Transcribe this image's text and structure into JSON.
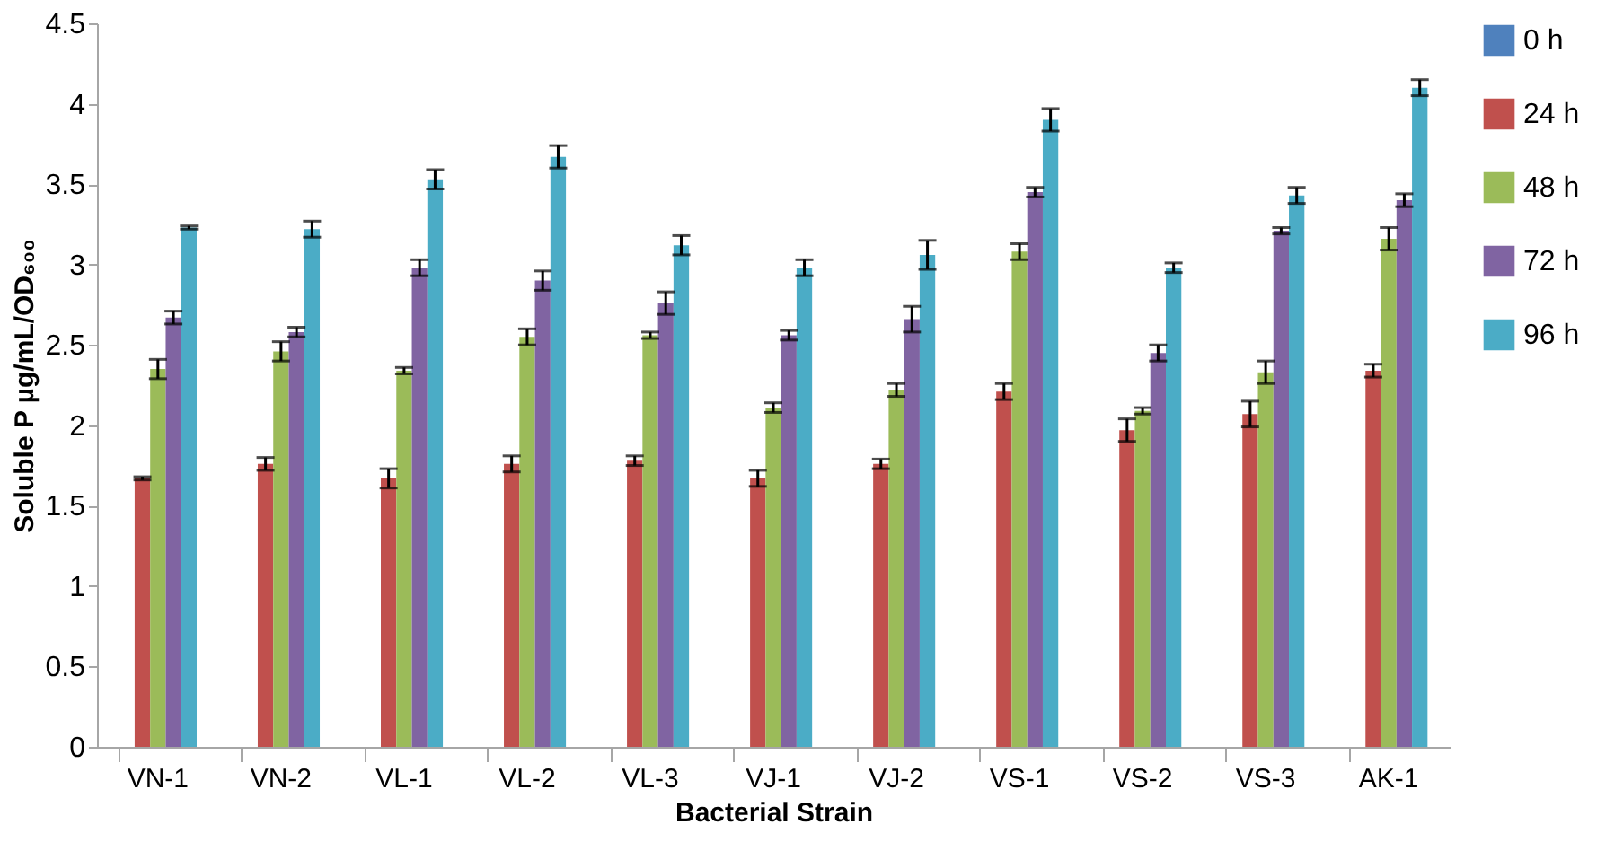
{
  "chart_data": {
    "type": "bar",
    "xlabel": "Bacterial Strain",
    "ylabel": "Soluble P µg/mL/OD₆₀₀",
    "categories": [
      "VN-1",
      "VN-2",
      "VL-1",
      "VL-2",
      "VL-3",
      "VJ-1",
      "VJ-2",
      "VS-1",
      "VS-2",
      "VS-3",
      "AK-1"
    ],
    "series": [
      {
        "name": "0 h",
        "color": "#4f81bd",
        "values": [
          0,
          0,
          0,
          0,
          0,
          0,
          0,
          0,
          0,
          0,
          0
        ]
      },
      {
        "name": "24 h",
        "color": "#c0504d",
        "values": [
          1.67,
          1.76,
          1.67,
          1.76,
          1.78,
          1.67,
          1.76,
          2.21,
          1.97,
          2.07,
          2.34
        ],
        "errors": [
          0.01,
          0.04,
          0.06,
          0.05,
          0.03,
          0.05,
          0.03,
          0.05,
          0.07,
          0.08,
          0.04
        ]
      },
      {
        "name": "48 h",
        "color": "#9bbb59",
        "values": [
          2.35,
          2.46,
          2.34,
          2.55,
          2.56,
          2.11,
          2.22,
          3.08,
          2.09,
          2.33,
          3.16
        ],
        "errors": [
          0.06,
          0.06,
          0.02,
          0.05,
          0.02,
          0.03,
          0.04,
          0.05,
          0.02,
          0.07,
          0.07
        ]
      },
      {
        "name": "72 h",
        "color": "#8064a2",
        "values": [
          2.67,
          2.58,
          2.98,
          2.9,
          2.76,
          2.56,
          2.66,
          3.45,
          2.45,
          3.21,
          3.4
        ],
        "errors": [
          0.04,
          0.03,
          0.05,
          0.06,
          0.07,
          0.03,
          0.08,
          0.03,
          0.05,
          0.02,
          0.04
        ]
      },
      {
        "name": "96 h",
        "color": "#4bacc6",
        "values": [
          3.23,
          3.22,
          3.53,
          3.67,
          3.12,
          2.98,
          3.06,
          3.9,
          2.98,
          3.43,
          4.1
        ],
        "errors": [
          0.01,
          0.05,
          0.06,
          0.07,
          0.06,
          0.05,
          0.09,
          0.07,
          0.03,
          0.05,
          0.05
        ]
      }
    ],
    "ylim": [
      0,
      4.5
    ],
    "yticks": [
      0,
      0.5,
      1,
      1.5,
      2,
      2.5,
      3,
      3.5,
      4,
      4.5
    ],
    "grid": false,
    "legend": "right"
  }
}
